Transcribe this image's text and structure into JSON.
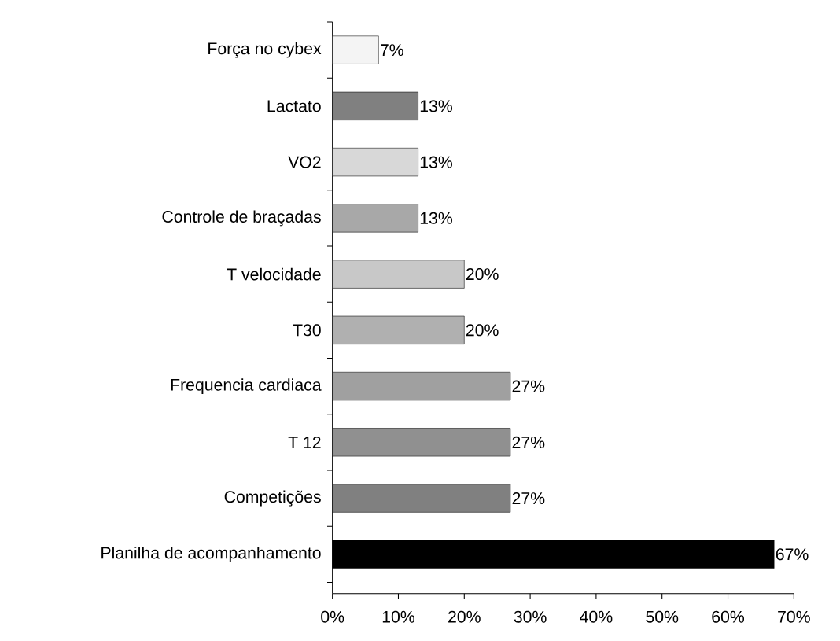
{
  "chart_data": {
    "type": "bar",
    "orientation": "horizontal",
    "categories": [
      "Força no cybex",
      "Lactato",
      "VO2",
      "Controle de braçadas",
      "T velocidade",
      "T30",
      "Frequencia cardiaca",
      "T 12",
      "Competições",
      "Planilha de acompanhamento"
    ],
    "values": [
      7,
      13,
      13,
      13,
      20,
      20,
      27,
      27,
      27,
      67
    ],
    "value_labels": [
      "7%",
      "13%",
      "13%",
      "13%",
      "20%",
      "20%",
      "27%",
      "27%",
      "27%",
      "67%"
    ],
    "colors": [
      "#f4f4f4",
      "#808080",
      "#d8d8d8",
      "#a8a8a8",
      "#c8c8c8",
      "#b0b0b0",
      "#a0a0a0",
      "#909090",
      "#808080",
      "#000000"
    ],
    "xlim": [
      0,
      70
    ],
    "xticks": [
      {
        "value": 0,
        "label": "0%"
      },
      {
        "value": 10,
        "label": "10%"
      },
      {
        "value": 20,
        "label": "20%"
      },
      {
        "value": 30,
        "label": "30%"
      },
      {
        "value": 40,
        "label": "40%"
      },
      {
        "value": 50,
        "label": "50%"
      },
      {
        "value": 60,
        "label": "60%"
      },
      {
        "value": 70,
        "label": "70%"
      }
    ],
    "grid": false
  }
}
